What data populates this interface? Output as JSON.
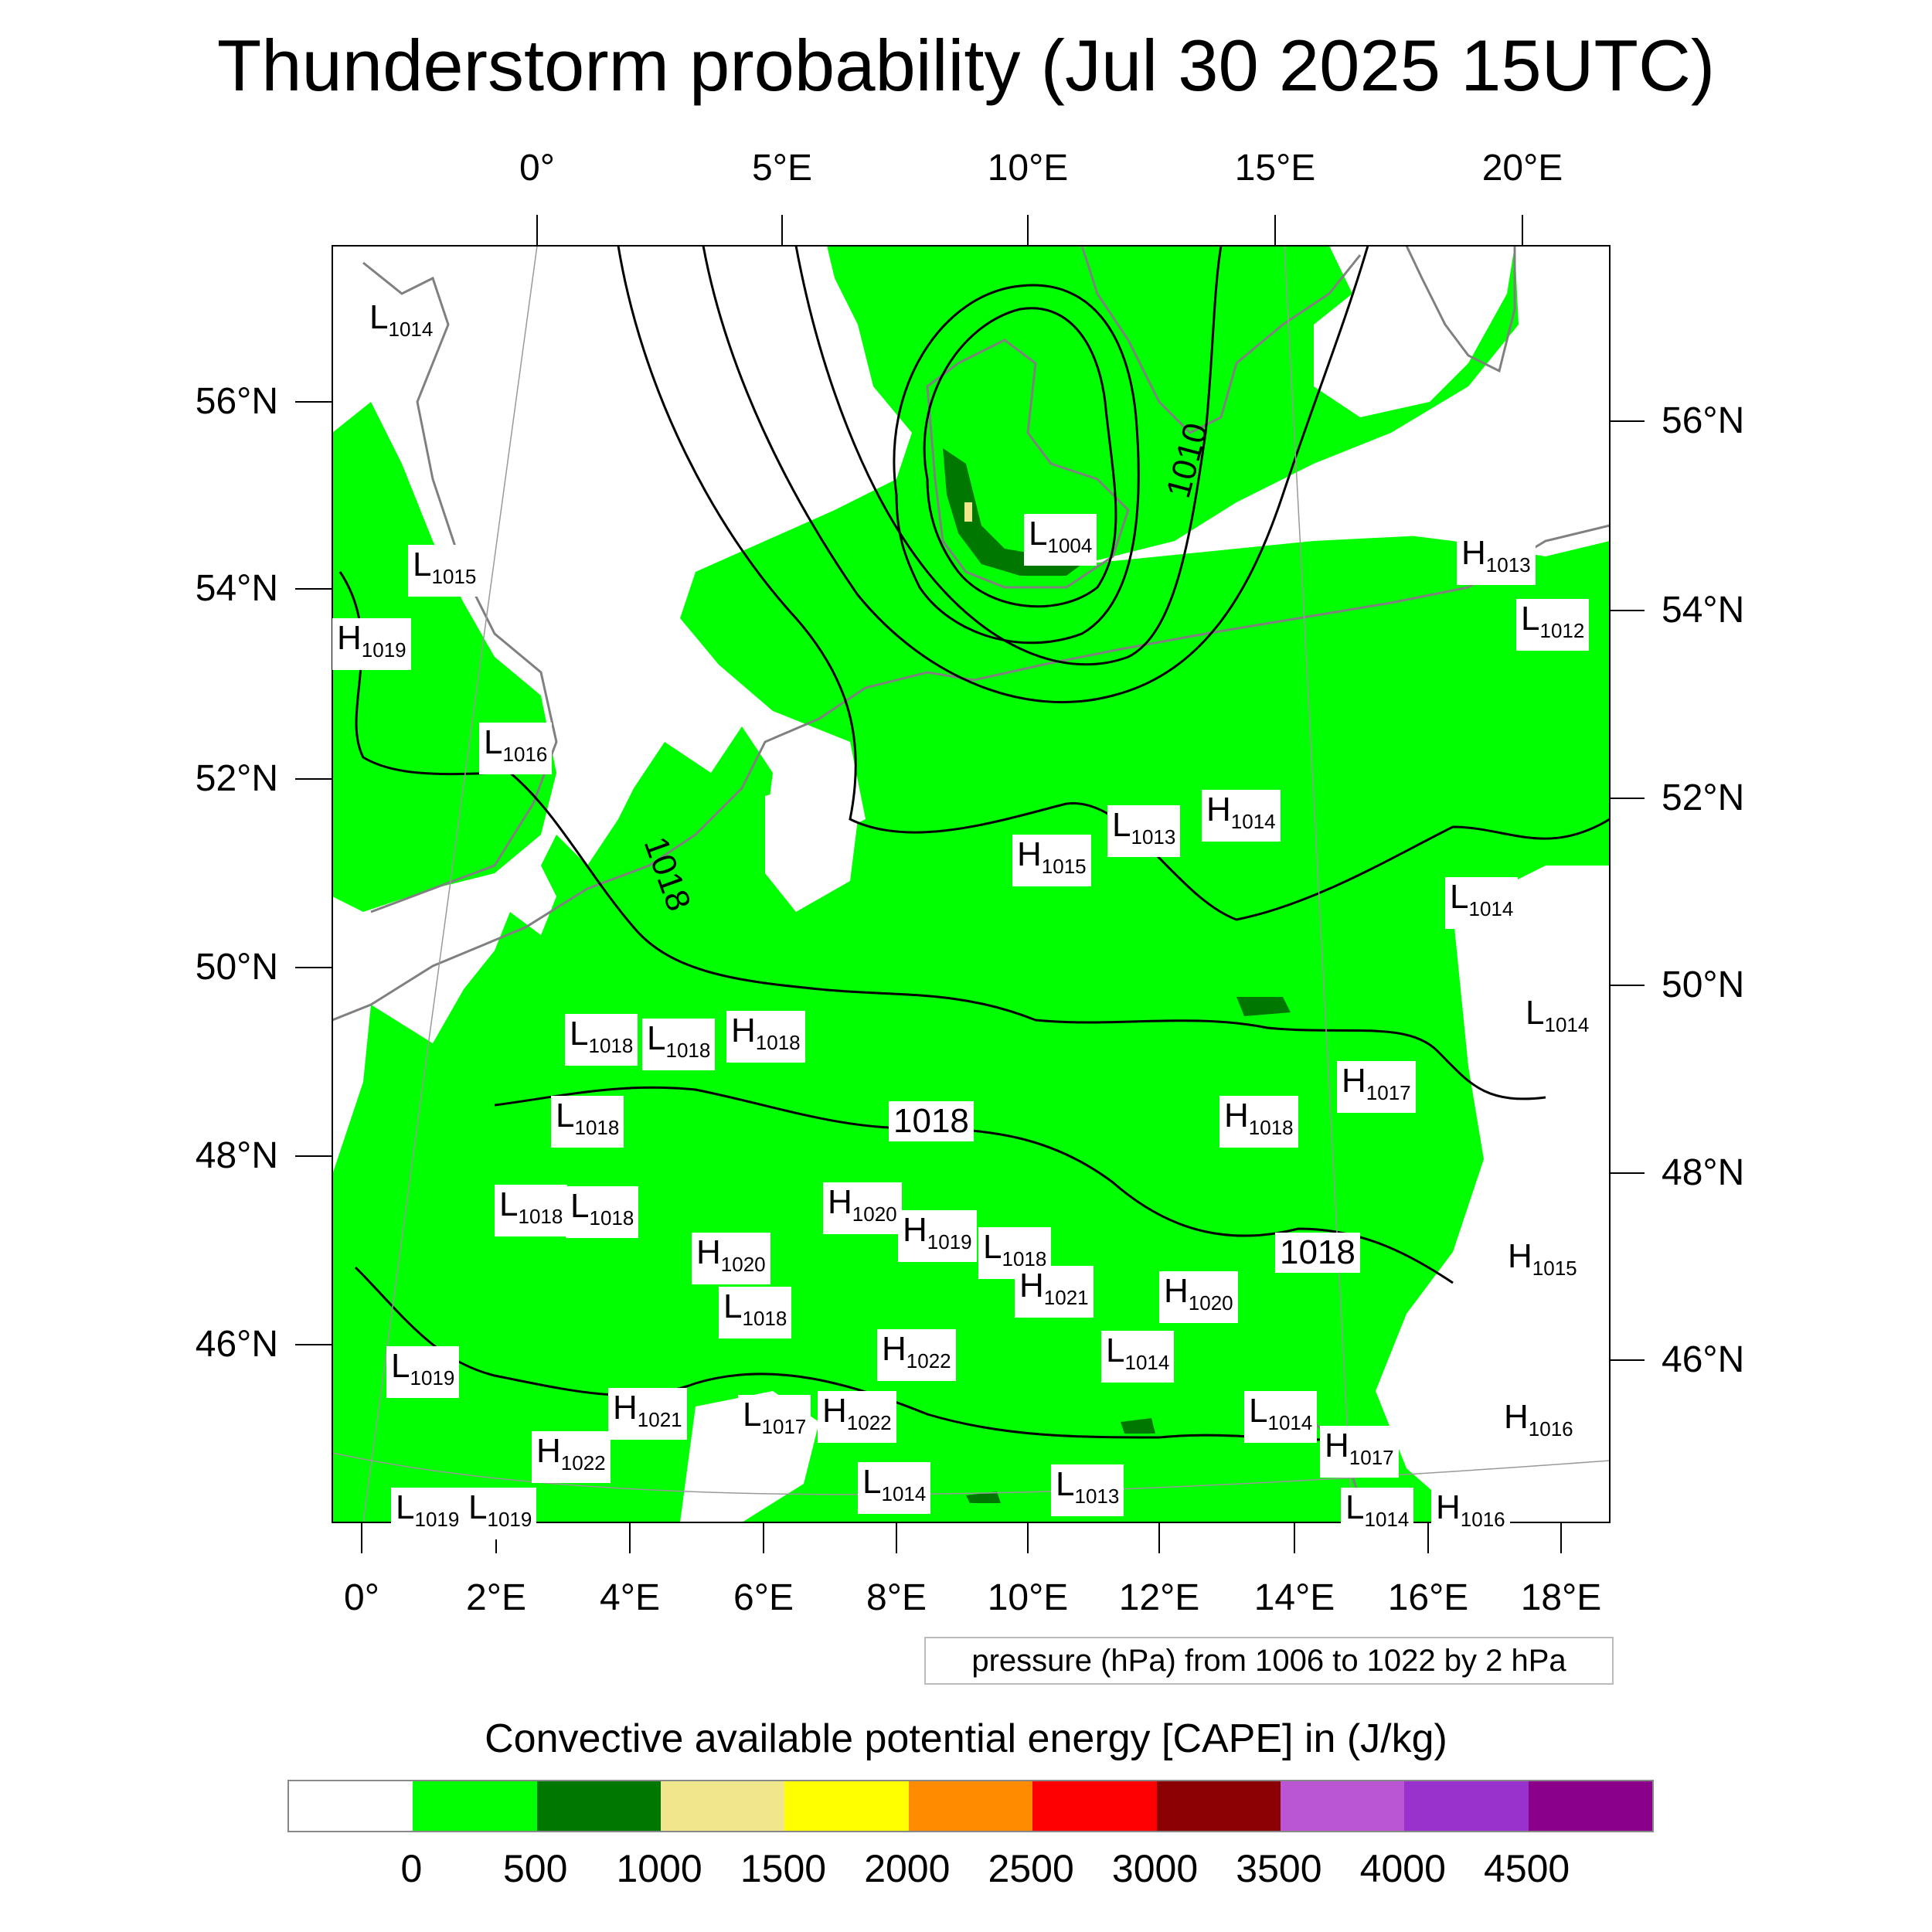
{
  "title": "Thunderstorm probability (Jul 30 2025 15UTC)",
  "top_lon_labels": [
    "0°",
    "5°E",
    "10°E",
    "15°E",
    "20°E"
  ],
  "bottom_lon_labels": [
    "0°",
    "2°E",
    "4°E",
    "6°E",
    "8°E",
    "10°E",
    "12°E",
    "14°E",
    "16°E",
    "18°E"
  ],
  "left_lat_labels": [
    "56°N",
    "54°N",
    "52°N",
    "50°N",
    "48°N",
    "46°N"
  ],
  "right_lat_labels": [
    "56°N",
    "54°N",
    "52°N",
    "50°N",
    "48°N",
    "46°N"
  ],
  "contour_labels": {
    "c1010": "1010",
    "c1018_a": "1018",
    "c1018_b": "1018",
    "c1018_c": "1018"
  },
  "pressure_centers": [
    {
      "type": "L",
      "value": "1014"
    },
    {
      "type": "L",
      "value": "1015"
    },
    {
      "type": "H",
      "value": "1019"
    },
    {
      "type": "L",
      "value": "1016"
    },
    {
      "type": "L",
      "value": "1004"
    },
    {
      "type": "H",
      "value": "1013"
    },
    {
      "type": "L",
      "value": "1012"
    },
    {
      "type": "L",
      "value": "1013"
    },
    {
      "type": "H",
      "value": "1014"
    },
    {
      "type": "H",
      "value": "1015"
    },
    {
      "type": "L",
      "value": "1014"
    },
    {
      "type": "L",
      "value": "1014"
    },
    {
      "type": "L",
      "value": "1018"
    },
    {
      "type": "L",
      "value": "1018"
    },
    {
      "type": "H",
      "value": "1018"
    },
    {
      "type": "H",
      "value": "1017"
    },
    {
      "type": "L",
      "value": "1018"
    },
    {
      "type": "H",
      "value": "1018"
    },
    {
      "type": "L",
      "value": "1018"
    },
    {
      "type": "L",
      "value": "1018"
    },
    {
      "type": "H",
      "value": "1020"
    },
    {
      "type": "H",
      "value": "1019"
    },
    {
      "type": "H",
      "value": "1020"
    },
    {
      "type": "L",
      "value": "1018"
    },
    {
      "type": "H",
      "value": "1021"
    },
    {
      "type": "H",
      "value": "1020"
    },
    {
      "type": "L",
      "value": "1018"
    },
    {
      "type": "H",
      "value": "1015"
    },
    {
      "type": "L",
      "value": "1019"
    },
    {
      "type": "H",
      "value": "1022"
    },
    {
      "type": "L",
      "value": "1014"
    },
    {
      "type": "H",
      "value": "1021"
    },
    {
      "type": "L",
      "value": "1017"
    },
    {
      "type": "H",
      "value": "1022"
    },
    {
      "type": "L",
      "value": "1014"
    },
    {
      "type": "H",
      "value": "1017"
    },
    {
      "type": "H",
      "value": "1016"
    },
    {
      "type": "H",
      "value": "1022"
    },
    {
      "type": "L",
      "value": "1014"
    },
    {
      "type": "L",
      "value": "1013"
    },
    {
      "type": "L",
      "value": "1019"
    },
    {
      "type": "L",
      "value": "1019"
    },
    {
      "type": "L",
      "value": "1014"
    },
    {
      "type": "H",
      "value": "1016"
    }
  ],
  "pressure_note": "pressure (hPa) from 1006 to 1022 by 2 hPa",
  "colorbar": {
    "title": "Convective available potential energy [CAPE] in (J/kg)",
    "labels": [
      "0",
      "500",
      "1000",
      "1500",
      "2000",
      "2500",
      "3000",
      "3500",
      "4000",
      "4500"
    ],
    "colors": [
      "#ffffff",
      "#00ff00",
      "#007800",
      "#f0e68c",
      "#ffff00",
      "#ff8c00",
      "#ff0000",
      "#8b0000",
      "#ba55d3",
      "#9932cc",
      "#8b008b"
    ]
  },
  "map_colors": {
    "cape_low": "#00ff00",
    "cape_mid": "#007800",
    "cape_high": "#f0e68c",
    "coastline": "#808080",
    "isobar": "#000000"
  }
}
